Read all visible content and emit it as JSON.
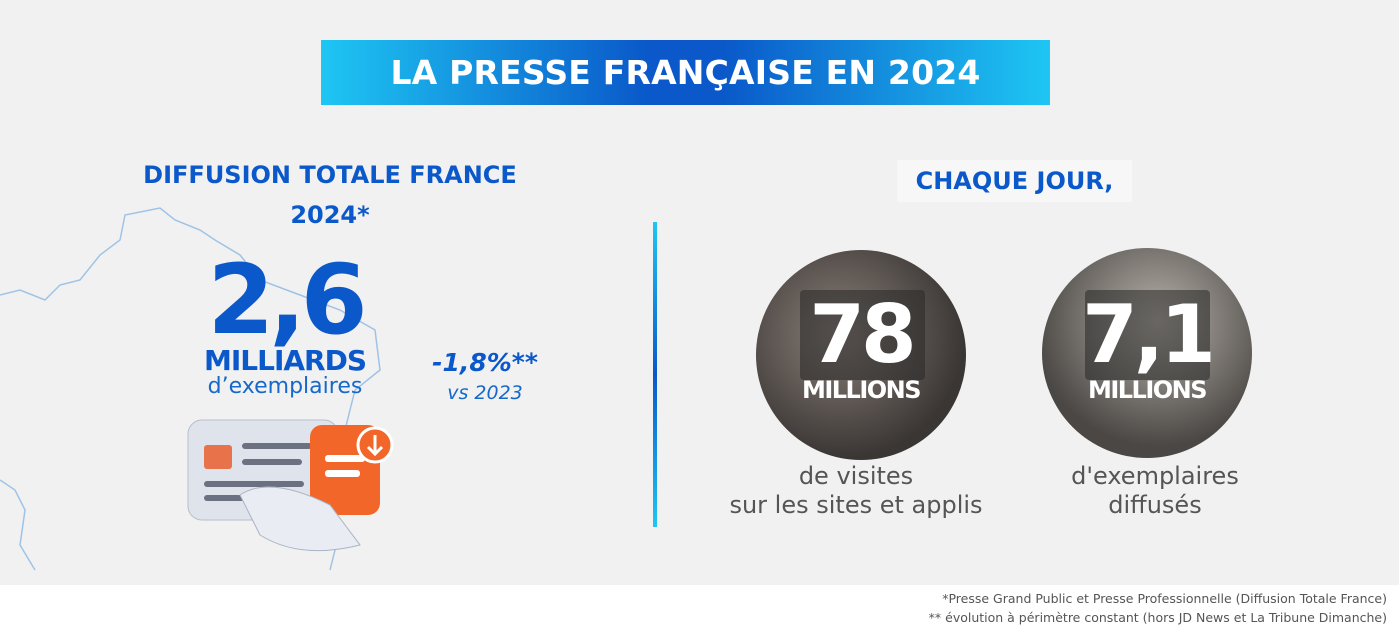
{
  "header": {
    "title": "LA PRESSE FRANÇAISE EN 2024"
  },
  "left": {
    "heading": [
      "DIFFUSION TOTALE FRANCE",
      "2024*"
    ],
    "value": "2,6",
    "unit": "MILLIARDS",
    "subtitle": "d’exemplaires",
    "evolution": "-1,8%**",
    "comparison": "vs 2023"
  },
  "right": {
    "heading": "CHAQUE JOUR,",
    "stats": [
      {
        "value": "78",
        "unit": "MILLIONS",
        "caption": [
          "de visites",
          "sur les sites et applis"
        ]
      },
      {
        "value": "7,1",
        "unit": "MILLIONS",
        "caption": [
          "d'exemplaires",
          "diffusés"
        ]
      }
    ]
  },
  "footnotes": [
    "*Presse Grand Public et Presse Professionnelle (Diffusion Totale France)",
    "** évolution à périmètre constant (hors JD News et La Tribune Dimanche)"
  ]
}
